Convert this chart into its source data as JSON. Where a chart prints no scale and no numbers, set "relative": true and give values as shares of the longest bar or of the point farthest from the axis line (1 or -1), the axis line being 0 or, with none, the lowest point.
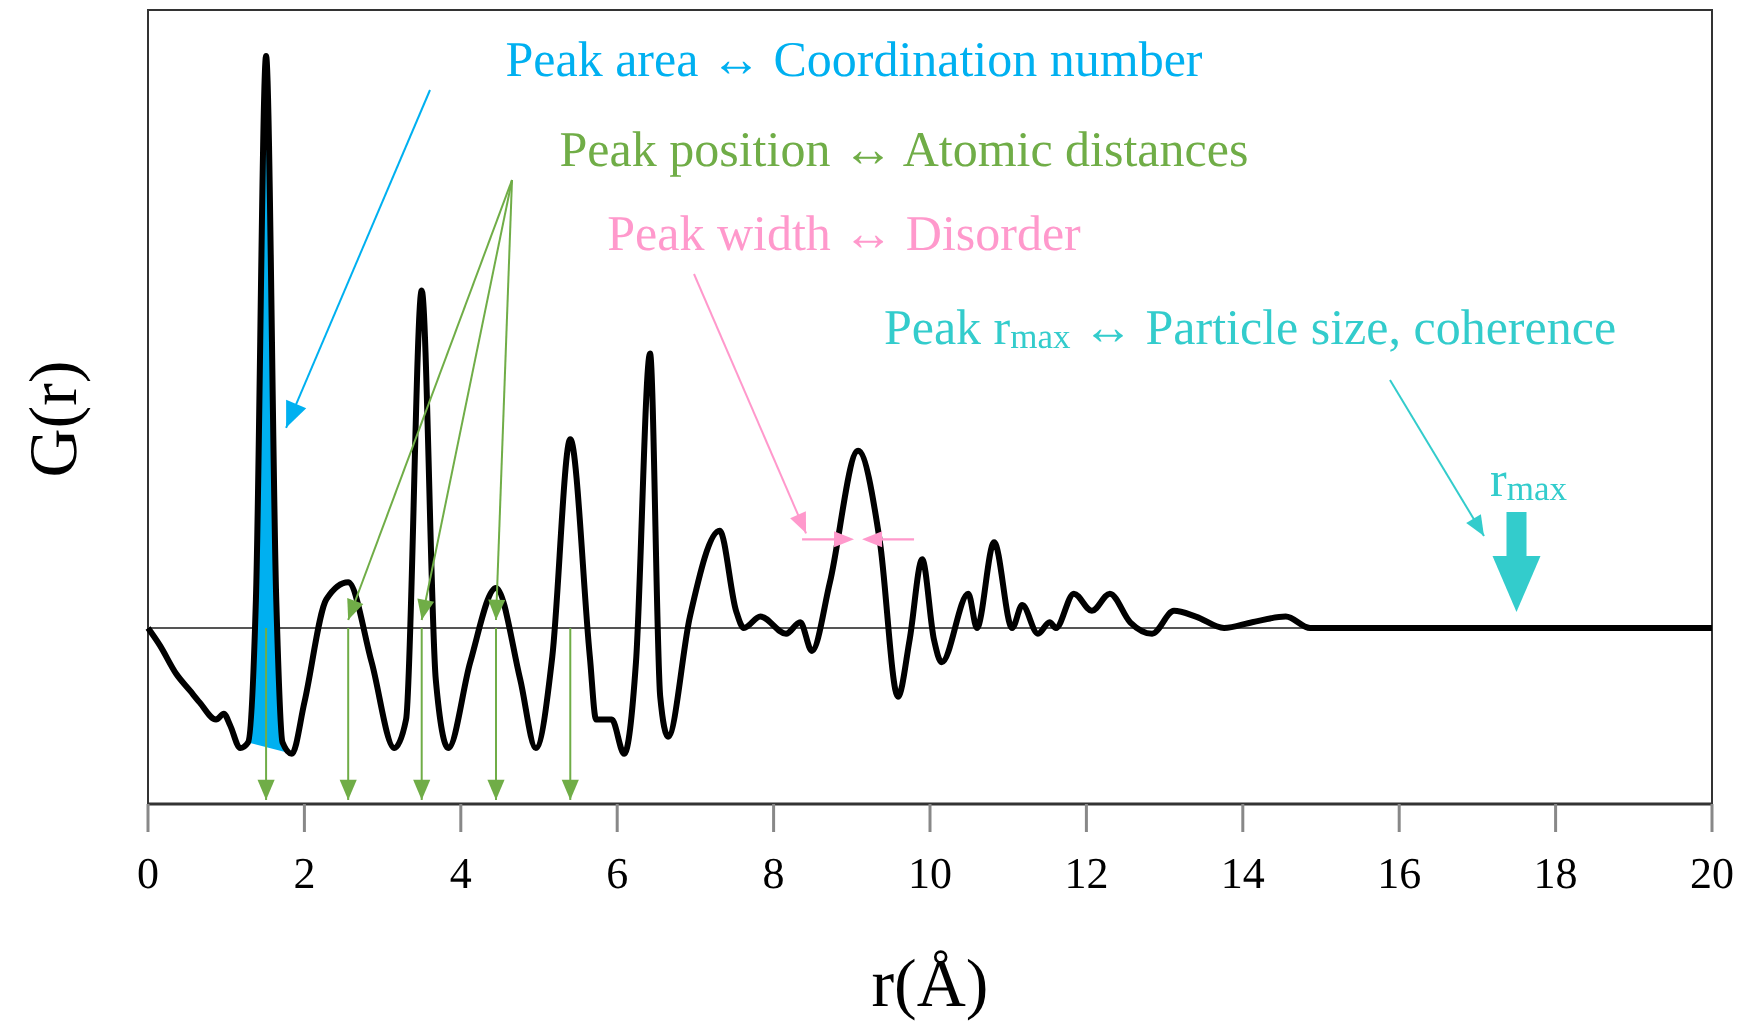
{
  "chart_data": {
    "type": "line",
    "relative": true,
    "xlabel": "r(Å)",
    "ylabel": "G(r)",
    "xlim": [
      0,
      20
    ],
    "xticks": [
      0,
      2,
      4,
      6,
      8,
      10,
      12,
      14,
      16,
      18,
      20
    ],
    "tick_labels": "x",
    "marker": "none",
    "line_style": "solid",
    "annotations": [
      "Peak area ↔ Coordination number",
      "Peak position ↔ Atomic distances",
      "Peak width ↔ Disorder",
      "Peak r$_{max}$ ↔ Particle size, coherence",
      {
        "text": "r$_{max}$",
        "x": 17.5,
        "y": 0
      }
    ],
    "series": [
      {
        "color": "#000000",
        "x": [
          0,
          0.15,
          0.36,
          0.54,
          0.66,
          0.87,
          0.97,
          1.05,
          1.18,
          1.28,
          1.38,
          1.51,
          1.64,
          1.72,
          1.84,
          2.0,
          2.28,
          2.56,
          2.86,
          3.15,
          3.3,
          3.5,
          3.68,
          3.84,
          4.12,
          4.45,
          4.76,
          4.96,
          5.17,
          5.4,
          5.65,
          5.73,
          5.93,
          6.09,
          6.24,
          6.42,
          6.55,
          6.65,
          6.93,
          7.31,
          7.52,
          7.62,
          7.83,
          8.16,
          8.34,
          8.49,
          8.72,
          9.08,
          9.36,
          9.59,
          9.74,
          9.9,
          10.05,
          10.15,
          10.49,
          10.6,
          10.82,
          11.05,
          11.18,
          11.38,
          11.53,
          11.61,
          11.84,
          12.07,
          12.3,
          12.56,
          12.84,
          13.12,
          13.4,
          13.76,
          14.12,
          14.55,
          14.86,
          16,
          20
        ],
        "values": [
          0,
          -0.03,
          -0.08,
          -0.11,
          -0.13,
          -0.16,
          -0.15,
          -0.17,
          -0.21,
          -0.2,
          0.05,
          1,
          0.05,
          -0.2,
          -0.22,
          -0.13,
          0.05,
          0.08,
          -0.06,
          -0.21,
          -0.16,
          0.59,
          -0.09,
          -0.21,
          -0.06,
          0.07,
          -0.09,
          -0.21,
          -0.05,
          0.33,
          -0.05,
          -0.16,
          -0.16,
          -0.22,
          -0.06,
          0.48,
          -0.12,
          -0.19,
          0.02,
          0.17,
          0.03,
          0,
          0.02,
          -0.01,
          0.01,
          -0.04,
          0.08,
          0.31,
          0.15,
          -0.12,
          -0.02,
          0.12,
          -0.02,
          -0.06,
          0.06,
          0,
          0.15,
          0,
          0.04,
          -0.01,
          0.01,
          0,
          0.06,
          0.03,
          0.06,
          0.01,
          -0.01,
          0.03,
          0.02,
          0,
          0.01,
          0.02,
          0,
          0,
          0
        ]
      }
    ]
  }
}
